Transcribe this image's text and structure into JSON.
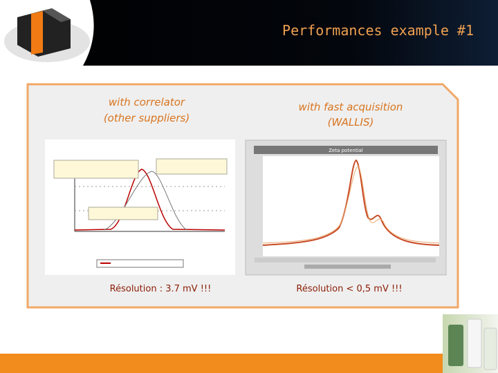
{
  "header": {
    "title": "Performances example #1"
  },
  "left": {
    "heading": [
      "with correlator",
      "(other suppliers)"
    ],
    "caption": "Résolution : 3.7 mV !!!"
  },
  "right": {
    "heading": [
      "with fast acquisition",
      "(WALLIS)"
    ],
    "chart_title": "Zeta potential",
    "caption": "Résolution < 0,5 mV !!!"
  }
}
